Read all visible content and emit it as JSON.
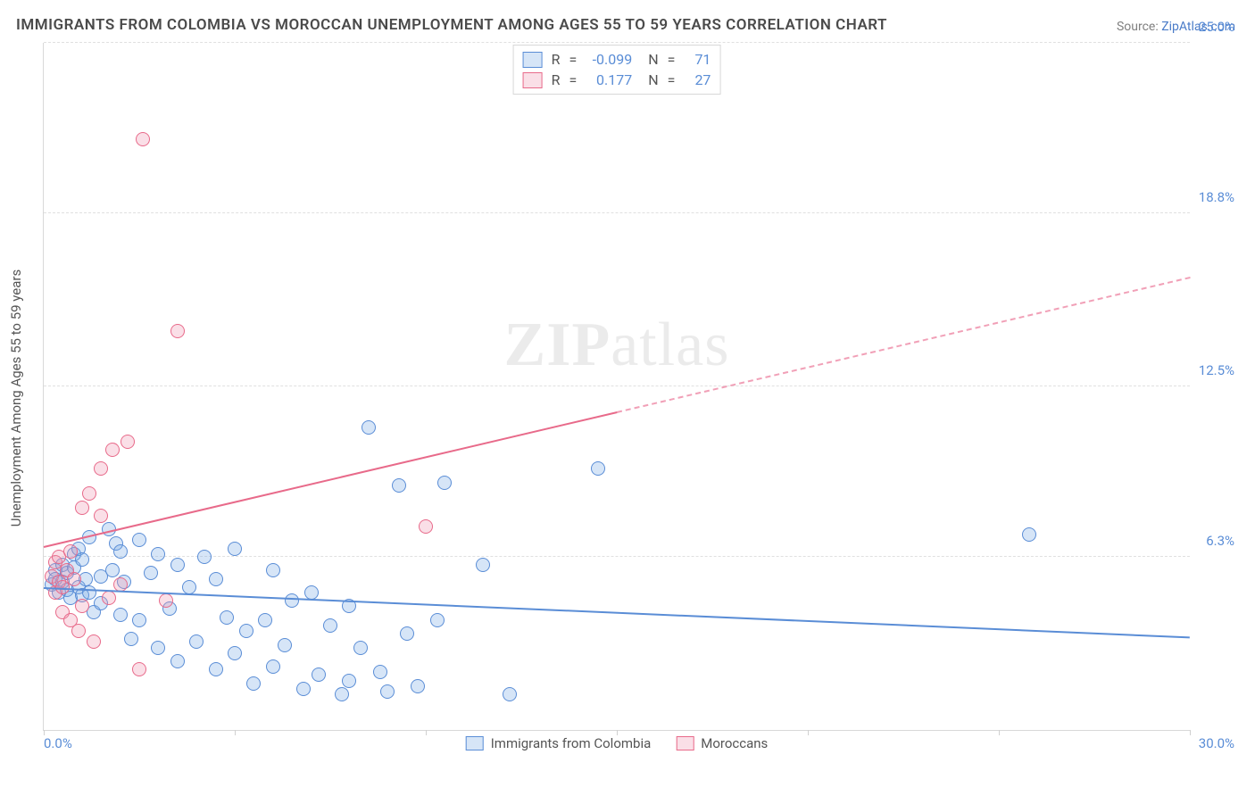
{
  "title": "IMMIGRANTS FROM COLOMBIA VS MOROCCAN UNEMPLOYMENT AMONG AGES 55 TO 59 YEARS CORRELATION CHART",
  "source_label": "Source: ",
  "source_name": "ZipAtlas.com",
  "y_axis_label": "Unemployment Among Ages 55 to 59 years",
  "watermark_a": "ZIP",
  "watermark_b": "atlas",
  "chart": {
    "type": "scatter",
    "background_color": "#ffffff",
    "grid_color": "#e0e0e0",
    "axis_color": "#d8d8d8",
    "tick_color": "#5a8dd6",
    "xlim": [
      0,
      30
    ],
    "ylim": [
      0,
      25
    ],
    "x_ticks": [
      0,
      5,
      10,
      15,
      20,
      25,
      30
    ],
    "x_min_label": "0.0%",
    "x_max_label": "30.0%",
    "y_grid": [
      {
        "value": 6.3,
        "label": "6.3%"
      },
      {
        "value": 12.5,
        "label": "12.5%"
      },
      {
        "value": 18.8,
        "label": "18.8%"
      },
      {
        "value": 25.0,
        "label": "25.0%"
      }
    ],
    "marker_radius": 8,
    "marker_stroke_width": 1.5,
    "marker_fill_opacity": 0.25,
    "series": [
      {
        "name": "Immigrants from Colombia",
        "color_stroke": "#5a8dd6",
        "color_fill": "rgba(120,170,230,0.30)",
        "R": "-0.099",
        "N": "71",
        "trend": {
          "x1": 0,
          "y1": 5.2,
          "x2": 30,
          "y2": 3.4,
          "solid_until_x": 30
        },
        "points": [
          [
            0.2,
            5.3
          ],
          [
            0.3,
            5.8
          ],
          [
            0.3,
            5.5
          ],
          [
            0.4,
            5.0
          ],
          [
            0.5,
            6.0
          ],
          [
            0.5,
            5.4
          ],
          [
            0.6,
            5.1
          ],
          [
            0.6,
            5.7
          ],
          [
            0.7,
            4.8
          ],
          [
            0.8,
            6.4
          ],
          [
            0.8,
            5.9
          ],
          [
            0.9,
            5.2
          ],
          [
            0.9,
            6.6
          ],
          [
            1.0,
            4.9
          ],
          [
            1.0,
            6.2
          ],
          [
            1.1,
            5.5
          ],
          [
            1.2,
            7.0
          ],
          [
            1.2,
            5.0
          ],
          [
            1.3,
            4.3
          ],
          [
            1.5,
            5.6
          ],
          [
            1.5,
            4.6
          ],
          [
            1.7,
            7.3
          ],
          [
            1.8,
            5.8
          ],
          [
            1.9,
            6.8
          ],
          [
            2.0,
            4.2
          ],
          [
            2.0,
            6.5
          ],
          [
            2.1,
            5.4
          ],
          [
            2.3,
            3.3
          ],
          [
            2.5,
            6.9
          ],
          [
            2.5,
            4.0
          ],
          [
            2.8,
            5.7
          ],
          [
            3.0,
            3.0
          ],
          [
            3.0,
            6.4
          ],
          [
            3.3,
            4.4
          ],
          [
            3.5,
            6.0
          ],
          [
            3.5,
            2.5
          ],
          [
            3.8,
            5.2
          ],
          [
            4.0,
            3.2
          ],
          [
            4.2,
            6.3
          ],
          [
            4.5,
            2.2
          ],
          [
            4.5,
            5.5
          ],
          [
            4.8,
            4.1
          ],
          [
            5.0,
            6.6
          ],
          [
            5.0,
            2.8
          ],
          [
            5.3,
            3.6
          ],
          [
            5.5,
            1.7
          ],
          [
            5.8,
            4.0
          ],
          [
            6.0,
            5.8
          ],
          [
            6.0,
            2.3
          ],
          [
            6.3,
            3.1
          ],
          [
            6.5,
            4.7
          ],
          [
            6.8,
            1.5
          ],
          [
            7.0,
            5.0
          ],
          [
            7.2,
            2.0
          ],
          [
            7.5,
            3.8
          ],
          [
            7.8,
            1.3
          ],
          [
            8.0,
            4.5
          ],
          [
            8.0,
            1.8
          ],
          [
            8.3,
            3.0
          ],
          [
            8.5,
            11.0
          ],
          [
            8.8,
            2.1
          ],
          [
            9.0,
            1.4
          ],
          [
            9.3,
            8.9
          ],
          [
            9.5,
            3.5
          ],
          [
            9.8,
            1.6
          ],
          [
            10.3,
            4.0
          ],
          [
            10.5,
            9.0
          ],
          [
            11.5,
            6.0
          ],
          [
            12.2,
            1.3
          ],
          [
            14.5,
            9.5
          ],
          [
            25.8,
            7.1
          ]
        ]
      },
      {
        "name": "Moroccans",
        "color_stroke": "#e86a8a",
        "color_fill": "rgba(240,150,175,0.30)",
        "R": "0.177",
        "N": "27",
        "trend": {
          "x1": 0,
          "y1": 6.7,
          "x2": 30,
          "y2": 16.5,
          "solid_until_x": 15
        },
        "points": [
          [
            0.2,
            5.6
          ],
          [
            0.3,
            5.0
          ],
          [
            0.3,
            6.1
          ],
          [
            0.4,
            5.4
          ],
          [
            0.4,
            6.3
          ],
          [
            0.5,
            5.2
          ],
          [
            0.5,
            4.3
          ],
          [
            0.6,
            5.8
          ],
          [
            0.7,
            6.5
          ],
          [
            0.7,
            4.0
          ],
          [
            0.8,
            5.5
          ],
          [
            0.9,
            3.6
          ],
          [
            1.0,
            4.5
          ],
          [
            1.0,
            8.1
          ],
          [
            1.2,
            8.6
          ],
          [
            1.3,
            3.2
          ],
          [
            1.5,
            7.8
          ],
          [
            1.5,
            9.5
          ],
          [
            1.7,
            4.8
          ],
          [
            1.8,
            10.2
          ],
          [
            2.0,
            5.3
          ],
          [
            2.2,
            10.5
          ],
          [
            2.5,
            2.2
          ],
          [
            2.6,
            21.5
          ],
          [
            3.2,
            4.7
          ],
          [
            3.5,
            14.5
          ],
          [
            10.0,
            7.4
          ]
        ]
      }
    ]
  },
  "legend_top": {
    "r_label": "R",
    "n_label": "N",
    "equals": "="
  }
}
